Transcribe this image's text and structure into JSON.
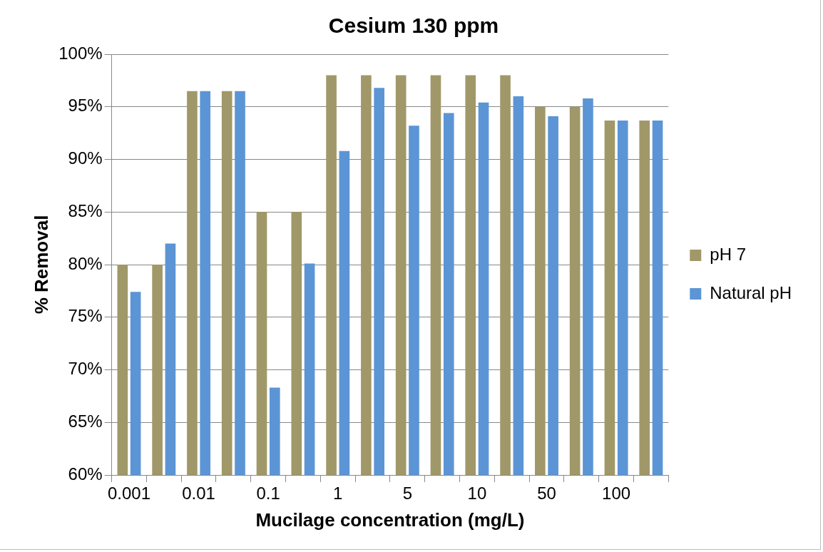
{
  "chart_data": {
    "type": "bar",
    "title": "Cesium 130 ppm",
    "xlabel": "Mucilage concentration (mg/L)",
    "ylabel": "% Removal",
    "categories": [
      "0.001",
      null,
      "0.01",
      null,
      "0.1",
      null,
      "1",
      null,
      "5",
      null,
      "10",
      null,
      "50",
      null,
      "100",
      null
    ],
    "series": [
      {
        "name": "pH 7",
        "color": "#a09868",
        "values": [
          80,
          80,
          96.5,
          96.5,
          85,
          85,
          98,
          98,
          98,
          98,
          98,
          98,
          95,
          95,
          93.7,
          93.7
        ]
      },
      {
        "name": "Natural pH",
        "color": "#5b95d5",
        "values": [
          77.4,
          82,
          96.5,
          96.5,
          68.3,
          80.1,
          90.8,
          96.8,
          93.2,
          94.4,
          95.4,
          96,
          94.1,
          95.8,
          93.7,
          93.7
        ]
      }
    ],
    "ylim": [
      60,
      100
    ],
    "yticks": [
      {
        "value": 60,
        "label": "60%"
      },
      {
        "value": 65,
        "label": "65%"
      },
      {
        "value": 70,
        "label": "70%"
      },
      {
        "value": 75,
        "label": "75%"
      },
      {
        "value": 80,
        "label": "80%"
      },
      {
        "value": 85,
        "label": "85%"
      },
      {
        "value": 90,
        "label": "90%"
      },
      {
        "value": 95,
        "label": "95%"
      },
      {
        "value": 100,
        "label": "100%"
      }
    ],
    "grid": "y",
    "legend": "right"
  }
}
